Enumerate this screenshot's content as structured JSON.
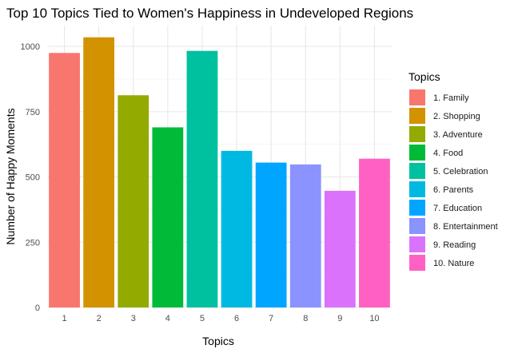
{
  "chart_data": {
    "type": "bar",
    "title": "Top 10 Topics Tied to Women's Happiness in Undeveloped Regions",
    "xlabel": "Topics",
    "ylabel": "Number of Happy Moments",
    "categories": [
      "1",
      "2",
      "3",
      "4",
      "5",
      "6",
      "7",
      "8",
      "9",
      "10"
    ],
    "values": [
      975,
      1035,
      813,
      690,
      983,
      600,
      555,
      548,
      447,
      570
    ],
    "ylim": [
      0,
      1080
    ],
    "yticks": [
      "0",
      "250",
      "500",
      "750",
      "1000"
    ],
    "ytick_values": [
      0,
      250,
      500,
      750,
      1000
    ],
    "grid": true,
    "legend": {
      "title": "Topics",
      "placement": "right",
      "entries": [
        "1. Family",
        "2. Shopping",
        "3. Adventure",
        "4. Food",
        "5. Celebration",
        "6. Parents",
        "7. Education",
        "8. Entertainment",
        "9. Reading",
        "10. Nature"
      ]
    },
    "colors": [
      "#F8766D",
      "#D39200",
      "#93AA00",
      "#00BA38",
      "#00C19F",
      "#00B9E3",
      "#00A5FF",
      "#8B93FF",
      "#DB72FB",
      "#FF61C3"
    ]
  }
}
